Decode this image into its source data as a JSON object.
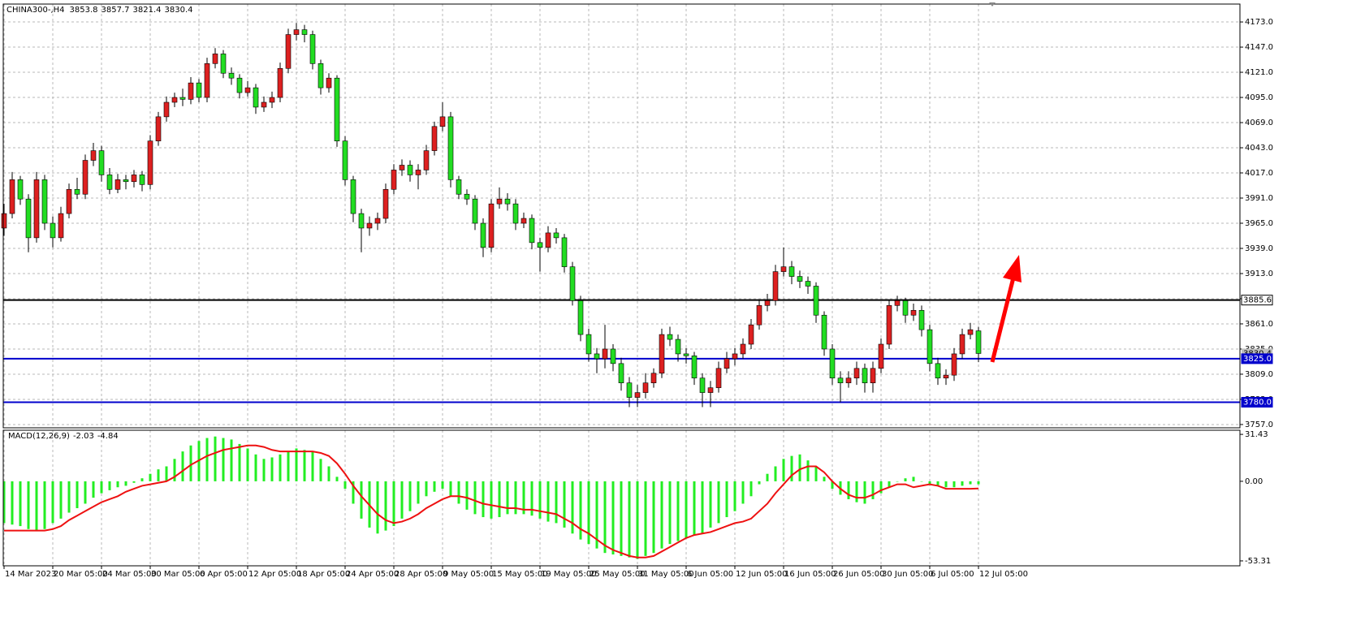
{
  "chart_data": {
    "type": "candlestick",
    "title": "CHINA300-,H4",
    "up_color": "#dd2020",
    "down_color": "#22dd22",
    "wick_color": "#000000",
    "xlim": [
      -0.5,
      152
    ],
    "xticks": [
      {
        "value": 0,
        "label": "14 Mar 2023"
      },
      {
        "value": 6,
        "label": "20 Mar 05:00"
      },
      {
        "value": 12,
        "label": "24 Mar 05:00"
      },
      {
        "value": 18,
        "label": "30 Mar 05:00"
      },
      {
        "value": 24,
        "label": "6 Apr 05:00"
      },
      {
        "value": 30,
        "label": "12 Apr 05:00"
      },
      {
        "value": 36,
        "label": "18 Apr 05:00"
      },
      {
        "value": 42,
        "label": "24 Apr 05:00"
      },
      {
        "value": 48,
        "label": "28 Apr 05:00"
      },
      {
        "value": 54,
        "label": "9 May 05:00"
      },
      {
        "value": 60,
        "label": "15 May 05:00"
      },
      {
        "value": 66,
        "label": "19 May 05:00"
      },
      {
        "value": 72,
        "label": "25 May 05:00"
      },
      {
        "value": 78,
        "label": "31 May 05:00"
      },
      {
        "value": 84,
        "label": "6 Jun 05:00"
      },
      {
        "value": 90,
        "label": "12 Jun 05:00"
      },
      {
        "value": 96,
        "label": "16 Jun 05:00"
      },
      {
        "value": 102,
        "label": "26 Jun 05:00"
      },
      {
        "value": 108,
        "label": "30 Jun 05:00"
      },
      {
        "value": 114,
        "label": "6 Jul 05:00"
      },
      {
        "value": 120,
        "label": "12 Jul 05:00"
      }
    ],
    "ylim": [
      3753.6,
      4191.5
    ],
    "yticks": [
      {
        "value": 4173,
        "label": "4173.0"
      },
      {
        "value": 4147,
        "label": "4147.0"
      },
      {
        "value": 4121,
        "label": "4121.0"
      },
      {
        "value": 4095,
        "label": "4095.0"
      },
      {
        "value": 4069,
        "label": "4069.0"
      },
      {
        "value": 4043,
        "label": "4043.0"
      },
      {
        "value": 4017,
        "label": "4017.0"
      },
      {
        "value": 3991,
        "label": "3991.0"
      },
      {
        "value": 3965,
        "label": "3965.0"
      },
      {
        "value": 3939,
        "label": "3939.0"
      },
      {
        "value": 3913,
        "label": "3913.0"
      },
      {
        "value": 3887,
        "label": "3887.0"
      },
      {
        "value": 3861,
        "label": "3861.0"
      },
      {
        "value": 3835,
        "label": "3835.0"
      },
      {
        "value": 3809,
        "label": "3809.0"
      },
      {
        "value": 3783,
        "label": "3783.0"
      },
      {
        "value": 3757,
        "label": "3757.0"
      }
    ],
    "grid": true,
    "levels": [
      {
        "value": 3885.6,
        "label": "3885.6",
        "color": "#000000"
      },
      {
        "value": 3825.0,
        "label": "3825.0",
        "color": "#0000cc"
      },
      {
        "value": 3780.0,
        "label": "3780.0",
        "color": "#0000cc"
      }
    ],
    "candles": [
      [
        3960,
        3985,
        3952,
        3975
      ],
      [
        3975,
        4018,
        3970,
        4010
      ],
      [
        4010,
        4014,
        3984,
        3990
      ],
      [
        3990,
        3995,
        3935,
        3950
      ],
      [
        3950,
        4018,
        3945,
        4010
      ],
      [
        4010,
        4015,
        3958,
        3965
      ],
      [
        3965,
        3972,
        3940,
        3950
      ],
      [
        3950,
        3982,
        3946,
        3975
      ],
      [
        3975,
        4006,
        3970,
        4000
      ],
      [
        4000,
        4012,
        3990,
        3995
      ],
      [
        3995,
        4036,
        3990,
        4030
      ],
      [
        4030,
        4048,
        4024,
        4040
      ],
      [
        4040,
        4045,
        4008,
        4015
      ],
      [
        4015,
        4022,
        3995,
        4000
      ],
      [
        4000,
        4016,
        3996,
        4010
      ],
      [
        4010,
        4015,
        4000,
        4008
      ],
      [
        4008,
        4020,
        4002,
        4015
      ],
      [
        4015,
        4019,
        3998,
        4005
      ],
      [
        4005,
        4056,
        4000,
        4050
      ],
      [
        4050,
        4080,
        4045,
        4075
      ],
      [
        4075,
        4096,
        4070,
        4090
      ],
      [
        4090,
        4100,
        4085,
        4095
      ],
      [
        4095,
        4104,
        4086,
        4093
      ],
      [
        4093,
        4116,
        4088,
        4110
      ],
      [
        4110,
        4114,
        4090,
        4095
      ],
      [
        4095,
        4136,
        4090,
        4130
      ],
      [
        4130,
        4146,
        4125,
        4140
      ],
      [
        4140,
        4144,
        4115,
        4120
      ],
      [
        4120,
        4126,
        4108,
        4115
      ],
      [
        4115,
        4119,
        4094,
        4100
      ],
      [
        4100,
        4112,
        4096,
        4105
      ],
      [
        4105,
        4109,
        4078,
        4085
      ],
      [
        4085,
        4096,
        4080,
        4090
      ],
      [
        4090,
        4101,
        4084,
        4095
      ],
      [
        4095,
        4131,
        4090,
        4125
      ],
      [
        4125,
        4166,
        4120,
        4160
      ],
      [
        4160,
        4172,
        4154,
        4165
      ],
      [
        4165,
        4170,
        4152,
        4160
      ],
      [
        4160,
        4164,
        4124,
        4130
      ],
      [
        4130,
        4134,
        4098,
        4105
      ],
      [
        4105,
        4120,
        4100,
        4115
      ],
      [
        4115,
        4118,
        4044,
        4050
      ],
      [
        4050,
        4055,
        4004,
        4010
      ],
      [
        4010,
        4014,
        3966,
        3975
      ],
      [
        3975,
        3980,
        3935,
        3960
      ],
      [
        3960,
        3972,
        3952,
        3965
      ],
      [
        3965,
        3976,
        3958,
        3970
      ],
      [
        3970,
        4006,
        3965,
        4000
      ],
      [
        4000,
        4026,
        3995,
        4020
      ],
      [
        4020,
        4031,
        4014,
        4025
      ],
      [
        4025,
        4030,
        4008,
        4015
      ],
      [
        4015,
        4026,
        4000,
        4020
      ],
      [
        4020,
        4046,
        4015,
        4040
      ],
      [
        4040,
        4070,
        4035,
        4065
      ],
      [
        4065,
        4090,
        4060,
        4075
      ],
      [
        4075,
        4080,
        4002,
        4010
      ],
      [
        4010,
        4014,
        3990,
        3995
      ],
      [
        3995,
        4000,
        3984,
        3990
      ],
      [
        3990,
        3994,
        3958,
        3965
      ],
      [
        3965,
        3970,
        3930,
        3940
      ],
      [
        3940,
        3990,
        3935,
        3985
      ],
      [
        3985,
        4002,
        3980,
        3990
      ],
      [
        3990,
        3996,
        3978,
        3985
      ],
      [
        3985,
        3990,
        3958,
        3965
      ],
      [
        3965,
        3976,
        3960,
        3970
      ],
      [
        3970,
        3974,
        3938,
        3945
      ],
      [
        3945,
        3950,
        3915,
        3940
      ],
      [
        3940,
        3962,
        3935,
        3955
      ],
      [
        3955,
        3960,
        3944,
        3950
      ],
      [
        3950,
        3954,
        3914,
        3920
      ],
      [
        3920,
        3925,
        3880,
        3885
      ],
      [
        3885,
        3890,
        3843,
        3850
      ],
      [
        3850,
        3856,
        3822,
        3830
      ],
      [
        3830,
        3836,
        3810,
        3825
      ],
      [
        3825,
        3860,
        3815,
        3835
      ],
      [
        3835,
        3840,
        3812,
        3820
      ],
      [
        3820,
        3826,
        3792,
        3800
      ],
      [
        3800,
        3806,
        3775,
        3785
      ],
      [
        3785,
        3798,
        3775,
        3790
      ],
      [
        3790,
        3810,
        3784,
        3800
      ],
      [
        3800,
        3815,
        3795,
        3810
      ],
      [
        3810,
        3856,
        3805,
        3850
      ],
      [
        3850,
        3858,
        3838,
        3845
      ],
      [
        3845,
        3850,
        3822,
        3830
      ],
      [
        3830,
        3836,
        3820,
        3828
      ],
      [
        3828,
        3832,
        3798,
        3805
      ],
      [
        3805,
        3810,
        3775,
        3790
      ],
      [
        3790,
        3802,
        3775,
        3795
      ],
      [
        3795,
        3822,
        3790,
        3815
      ],
      [
        3815,
        3832,
        3810,
        3825
      ],
      [
        3825,
        3836,
        3818,
        3830
      ],
      [
        3830,
        3846,
        3825,
        3840
      ],
      [
        3840,
        3866,
        3835,
        3860
      ],
      [
        3860,
        3886,
        3855,
        3880
      ],
      [
        3880,
        3892,
        3874,
        3885
      ],
      [
        3885,
        3922,
        3880,
        3915
      ],
      [
        3915,
        3940,
        3910,
        3920
      ],
      [
        3920,
        3926,
        3902,
        3910
      ],
      [
        3910,
        3916,
        3898,
        3905
      ],
      [
        3905,
        3910,
        3892,
        3900
      ],
      [
        3900,
        3904,
        3862,
        3870
      ],
      [
        3870,
        3874,
        3828,
        3835
      ],
      [
        3835,
        3840,
        3798,
        3805
      ],
      [
        3805,
        3812,
        3780,
        3800
      ],
      [
        3800,
        3812,
        3795,
        3805
      ],
      [
        3805,
        3822,
        3798,
        3815
      ],
      [
        3815,
        3820,
        3790,
        3800
      ],
      [
        3800,
        3822,
        3790,
        3815
      ],
      [
        3815,
        3846,
        3810,
        3840
      ],
      [
        3840,
        3886,
        3835,
        3880
      ],
      [
        3880,
        3890,
        3874,
        3885
      ],
      [
        3885,
        3888,
        3862,
        3870
      ],
      [
        3870,
        3882,
        3864,
        3875
      ],
      [
        3875,
        3880,
        3848,
        3855
      ],
      [
        3855,
        3860,
        3812,
        3820
      ],
      [
        3820,
        3826,
        3798,
        3805
      ],
      [
        3805,
        3814,
        3798,
        3808
      ],
      [
        3808,
        3836,
        3802,
        3830
      ],
      [
        3830,
        3856,
        3825,
        3850
      ],
      [
        3850,
        3862,
        3845,
        3855
      ],
      [
        3853.8,
        3857.7,
        3821.4,
        3830.4
      ]
    ],
    "macd": {
      "title": "MACD(12,26,9)",
      "ylim": [
        -56.6,
        34.2
      ],
      "yticks": [
        31.43,
        {
          "value": 0,
          "label": "0.00"
        },
        -53.31
      ],
      "histogram_color": "#22ee22",
      "signal_color": "#ee1111",
      "histogram": [
        -28,
        -29,
        -30,
        -32,
        -33,
        -32,
        -28,
        -25,
        -21,
        -18,
        -15,
        -11,
        -8,
        -6,
        -4,
        -3,
        -1,
        2,
        5,
        8,
        10,
        15,
        20,
        24,
        27,
        29,
        30,
        29,
        28,
        25,
        22,
        18,
        15,
        16,
        18,
        20,
        22,
        21,
        20,
        15,
        10,
        3,
        -5,
        -15,
        -25,
        -31,
        -35,
        -33,
        -30,
        -25,
        -20,
        -15,
        -10,
        -7,
        -5,
        -10,
        -15,
        -19,
        -22,
        -24,
        -25,
        -24,
        -22,
        -22,
        -22,
        -23,
        -25,
        -27,
        -28,
        -31,
        -35,
        -39,
        -42,
        -45,
        -48,
        -49,
        -50,
        -51,
        -52,
        -50,
        -48,
        -45,
        -42,
        -40,
        -38,
        -36,
        -35,
        -31,
        -28,
        -24,
        -20,
        -15,
        -10,
        -2,
        5,
        10,
        15,
        17,
        18,
        14,
        10,
        3,
        -5,
        -9,
        -12,
        -14,
        -15,
        -12,
        -8,
        -4,
        0,
        2,
        3,
        0,
        -2,
        -3,
        -4,
        -4,
        -3,
        -2,
        -2.03
      ],
      "signal": [
        -33,
        -33,
        -33,
        -33,
        -33,
        -33,
        -32,
        -30,
        -26,
        -23,
        -20,
        -17,
        -14,
        -12,
        -10,
        -7,
        -5,
        -3,
        -2,
        -1,
        0,
        3,
        7,
        11,
        14,
        17,
        19,
        21,
        22,
        23,
        24,
        24,
        23,
        21,
        20,
        20,
        20,
        20,
        20,
        19,
        17,
        12,
        5,
        -3,
        -10,
        -16,
        -22,
        -26,
        -28,
        -27,
        -25,
        -22,
        -18,
        -15,
        -12,
        -10,
        -10,
        -11,
        -13,
        -15,
        -16,
        -17,
        -18,
        -18,
        -19,
        -19,
        -20,
        -21,
        -22,
        -25,
        -28,
        -32,
        -35,
        -39,
        -43,
        -46,
        -48,
        -50,
        -51,
        -51,
        -50,
        -47,
        -44,
        -41,
        -38,
        -36,
        -35,
        -34,
        -32,
        -30,
        -28,
        -27,
        -25,
        -20,
        -15,
        -8,
        -2,
        4,
        8,
        10,
        10,
        6,
        0,
        -5,
        -9,
        -11,
        -11,
        -9,
        -6,
        -4,
        -2,
        -2,
        -4,
        -3,
        -2,
        -3,
        -5,
        -5,
        -5,
        -5,
        -4.84
      ]
    }
  }
}
